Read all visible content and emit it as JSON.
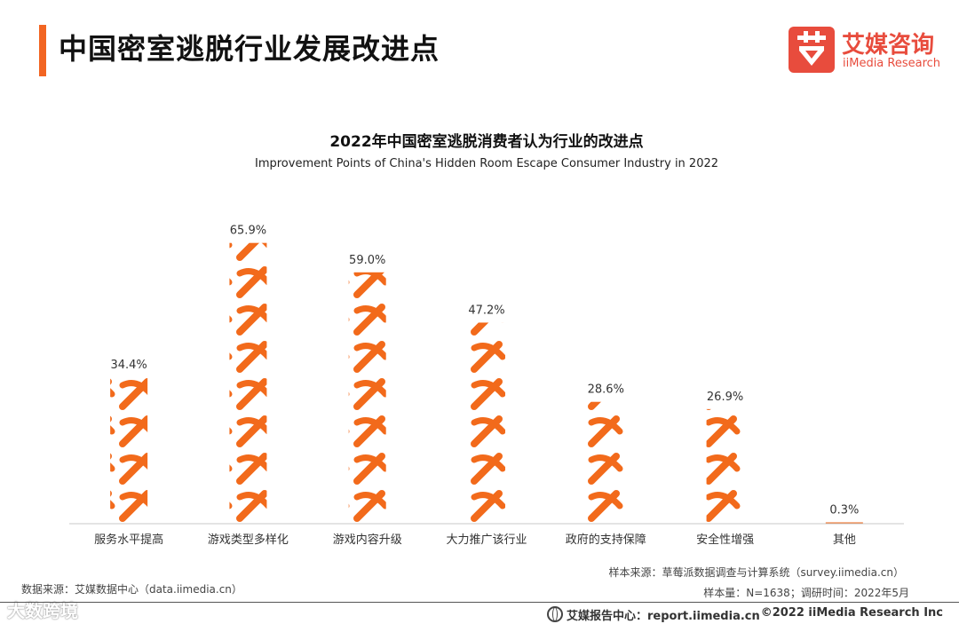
{
  "header": {
    "title": "中国密室逃脱行业发展改进点",
    "logo_cn": "艾媒咨询",
    "logo_en": "iiMedia Research"
  },
  "chart_data": {
    "type": "bar",
    "title": "2022年中国密室逃脱消费者认为行业的改进点",
    "subtitle": "Improvement Points of China's Hidden Room Escape Consumer Industry in 2022",
    "categories": [
      "服务水平提高",
      "游戏类型多样化",
      "游戏内容升级",
      "大力推广该行业",
      "政府的支持保障",
      "安全性增强",
      "其他"
    ],
    "values": [
      34.4,
      65.9,
      59.0,
      47.2,
      28.6,
      26.9,
      0.3
    ],
    "value_labels": [
      "34.4%",
      "65.9%",
      "59.0%",
      "47.2%",
      "28.6%",
      "26.9%",
      "0.3%"
    ],
    "unit": "%",
    "ylim": [
      0,
      70
    ],
    "bar_color": "#f26a1b"
  },
  "footer": {
    "sample_source": "样本来源：草莓派数据调查与计算系统（survey.iimedia.cn）",
    "sample_size": "样本量：N=1638；调研时间：2022年5月",
    "data_source": "数据来源：艾媒数据中心（data.iimedia.cn）",
    "report_center": "艾媒报告中心：report.iimedia.cn",
    "copyright": "©2022  iiMedia Research  Inc",
    "watermark": "大数跨境"
  },
  "colors": {
    "accent": "#f26522",
    "brand": "#e84c3d"
  }
}
